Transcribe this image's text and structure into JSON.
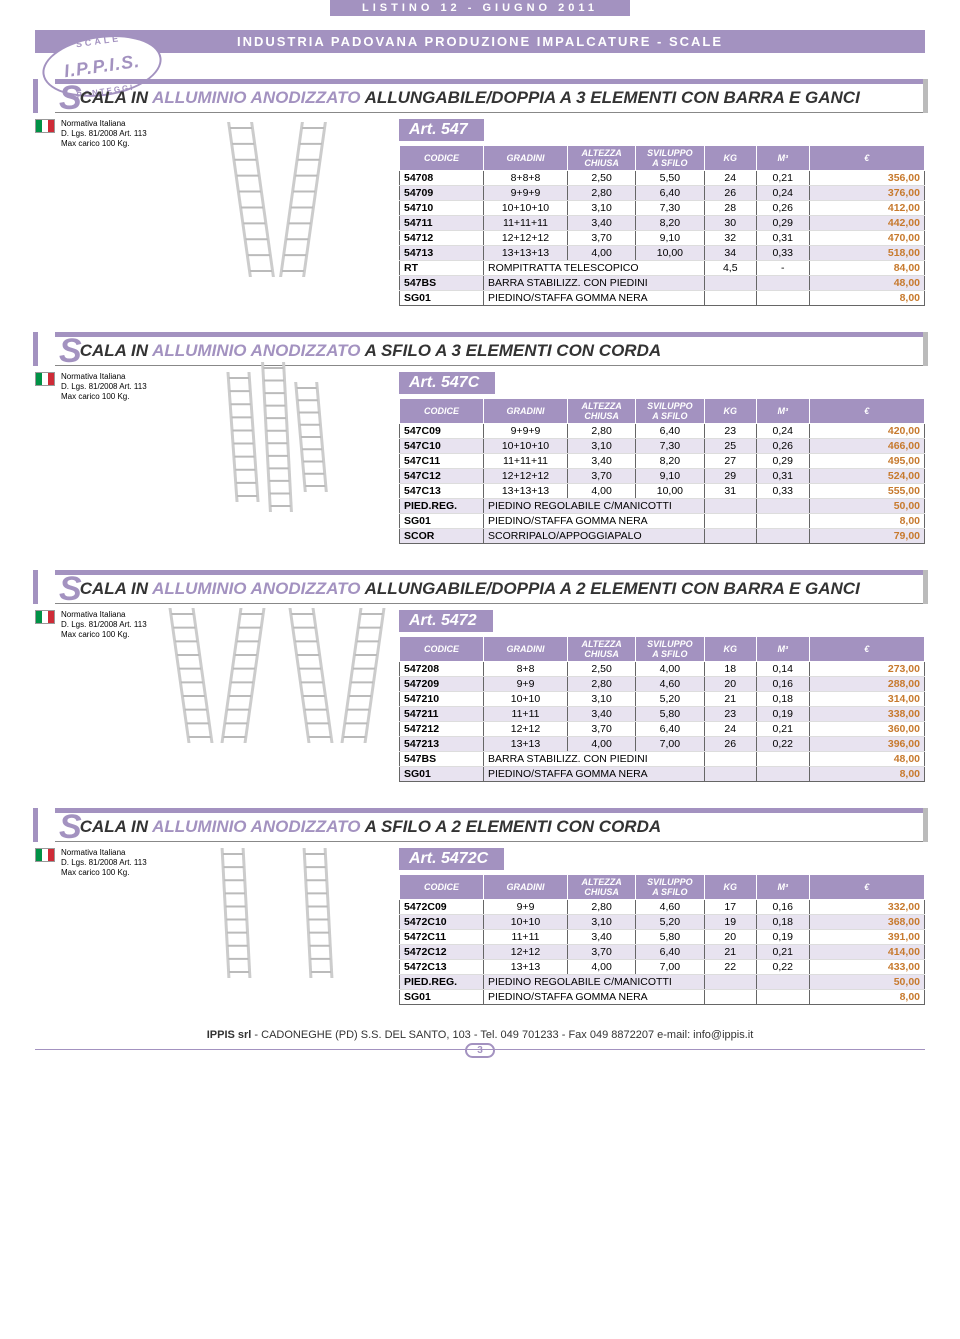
{
  "header": {
    "listino": "LISTINO 12   -   GIUGNO 2011",
    "subtitle": "INDUSTRIA PADOVANA PRODUZIONE IMPALCATURE - SCALE",
    "brand": "I.P.P.I.S.",
    "arc_top": "SCALE",
    "arc_bot": "PONTEGGI"
  },
  "colors": {
    "accent": "#a392c0",
    "price": "#c77a2e",
    "shade": "#e8e3f0"
  },
  "norm": {
    "l1": "Normativa Italiana",
    "l2": "D. Lgs. 81/2008 Art. 113",
    "l3": "Max carico 100 Kg."
  },
  "columns": [
    "CODICE",
    "GRADINI",
    "ALTEZZA CHIUSA",
    "SVILUPPO A SFILO",
    "KG",
    "M³",
    "€"
  ],
  "sections": [
    {
      "title_pre": "CALA IN ",
      "title_hl": "ALLUMINIO ANODIZZATO",
      "title_post": " ALLUNGABILE/DOPPIA A 3 ELEMENTI CON BARRA E GANCI",
      "art": "Art. 547",
      "rows": [
        {
          "c": [
            "54708",
            "8+8+8",
            "2,50",
            "5,50",
            "24",
            "0,21",
            "356,00"
          ],
          "shade": 0
        },
        {
          "c": [
            "54709",
            "9+9+9",
            "2,80",
            "6,40",
            "26",
            "0,24",
            "376,00"
          ],
          "shade": 1
        },
        {
          "c": [
            "54710",
            "10+10+10",
            "3,10",
            "7,30",
            "28",
            "0,26",
            "412,00"
          ],
          "shade": 0
        },
        {
          "c": [
            "54711",
            "11+11+11",
            "3,40",
            "8,20",
            "30",
            "0,29",
            "442,00"
          ],
          "shade": 1
        },
        {
          "c": [
            "54712",
            "12+12+12",
            "3,70",
            "9,10",
            "32",
            "0,31",
            "470,00"
          ],
          "shade": 0
        },
        {
          "c": [
            "54713",
            "13+13+13",
            "4,00",
            "10,00",
            "34",
            "0,33",
            "518,00"
          ],
          "shade": 1
        },
        {
          "span": {
            "code": "RT",
            "desc": "ROMPITRATTA TELESCOPICO",
            "kg": "4,5",
            "m3": "-",
            "price": "84,00"
          },
          "shade": 0
        },
        {
          "span": {
            "code": "547BS",
            "desc": "BARRA STABILIZZ. CON PIEDINI",
            "kg": "",
            "m3": "",
            "price": "48,00"
          },
          "shade": 1
        },
        {
          "span": {
            "code": "SG01",
            "desc": "PIEDINO/STAFFA GOMMA NERA",
            "kg": "",
            "m3": "",
            "price": "8,00"
          },
          "shade": 0
        }
      ]
    },
    {
      "title_pre": "CALA IN ",
      "title_hl": "ALLUMINIO ANODIZZATO",
      "title_post": " A SFILO A 3 ELEMENTI CON CORDA",
      "art": "Art. 547C",
      "rows": [
        {
          "c": [
            "547C09",
            "9+9+9",
            "2,80",
            "6,40",
            "23",
            "0,24",
            "420,00"
          ],
          "shade": 0
        },
        {
          "c": [
            "547C10",
            "10+10+10",
            "3,10",
            "7,30",
            "25",
            "0,26",
            "466,00"
          ],
          "shade": 1
        },
        {
          "c": [
            "547C11",
            "11+11+11",
            "3,40",
            "8,20",
            "27",
            "0,29",
            "495,00"
          ],
          "shade": 0
        },
        {
          "c": [
            "547C12",
            "12+12+12",
            "3,70",
            "9,10",
            "29",
            "0,31",
            "524,00"
          ],
          "shade": 1
        },
        {
          "c": [
            "547C13",
            "13+13+13",
            "4,00",
            "10,00",
            "31",
            "0,33",
            "555,00"
          ],
          "shade": 0
        },
        {
          "span": {
            "code": "PIED.REG.",
            "desc": "PIEDINO REGOLABILE C/MANICOTTI",
            "kg": "",
            "m3": "",
            "price": "50,00"
          },
          "shade": 1
        },
        {
          "span": {
            "code": "SG01",
            "desc": "PIEDINO/STAFFA GOMMA NERA",
            "kg": "",
            "m3": "",
            "price": "8,00"
          },
          "shade": 0
        },
        {
          "span": {
            "code": "SCOR",
            "desc": "SCORRIPALO/APPOGGIAPALO",
            "kg": "",
            "m3": "",
            "price": "79,00"
          },
          "shade": 1
        }
      ]
    },
    {
      "title_pre": "CALA IN ",
      "title_hl": "ALLUMINIO ANODIZZATO",
      "title_post": " ALLUNGABILE/DOPPIA A 2 ELEMENTI CON BARRA E GANCI",
      "art": "Art. 5472",
      "rows": [
        {
          "c": [
            "547208",
            "8+8",
            "2,50",
            "4,00",
            "18",
            "0,14",
            "273,00"
          ],
          "shade": 0
        },
        {
          "c": [
            "547209",
            "9+9",
            "2,80",
            "4,60",
            "20",
            "0,16",
            "288,00"
          ],
          "shade": 1
        },
        {
          "c": [
            "547210",
            "10+10",
            "3,10",
            "5,20",
            "21",
            "0,18",
            "314,00"
          ],
          "shade": 0
        },
        {
          "c": [
            "547211",
            "11+11",
            "3,40",
            "5,80",
            "23",
            "0,19",
            "338,00"
          ],
          "shade": 1
        },
        {
          "c": [
            "547212",
            "12+12",
            "3,70",
            "6,40",
            "24",
            "0,21",
            "360,00"
          ],
          "shade": 0
        },
        {
          "c": [
            "547213",
            "13+13",
            "4,00",
            "7,00",
            "26",
            "0,22",
            "396,00"
          ],
          "shade": 1
        },
        {
          "span": {
            "code": "547BS",
            "desc": "BARRA STABILIZZ. CON PIEDINI",
            "kg": "",
            "m3": "",
            "price": "48,00"
          },
          "shade": 0
        },
        {
          "span": {
            "code": "SG01",
            "desc": "PIEDINO/STAFFA GOMMA NERA",
            "kg": "",
            "m3": "",
            "price": "8,00"
          },
          "shade": 1
        }
      ]
    },
    {
      "title_pre": "CALA IN ",
      "title_hl": "ALLUMINIO ANODIZZATO",
      "title_post": " A SFILO A 2 ELEMENTI CON CORDA",
      "art": "Art. 5472C",
      "rows": [
        {
          "c": [
            "5472C09",
            "9+9",
            "2,80",
            "4,60",
            "17",
            "0,16",
            "332,00"
          ],
          "shade": 0
        },
        {
          "c": [
            "5472C10",
            "10+10",
            "3,10",
            "5,20",
            "19",
            "0,18",
            "368,00"
          ],
          "shade": 1
        },
        {
          "c": [
            "5472C11",
            "11+11",
            "3,40",
            "5,80",
            "20",
            "0,19",
            "391,00"
          ],
          "shade": 0
        },
        {
          "c": [
            "5472C12",
            "12+12",
            "3,70",
            "6,40",
            "21",
            "0,21",
            "414,00"
          ],
          "shade": 1
        },
        {
          "c": [
            "5472C13",
            "13+13",
            "4,00",
            "7,00",
            "22",
            "0,22",
            "433,00"
          ],
          "shade": 0
        },
        {
          "span": {
            "code": "PIED.REG.",
            "desc": "PIEDINO REGOLABILE C/MANICOTTI",
            "kg": "",
            "m3": "",
            "price": "50,00"
          },
          "shade": 1
        },
        {
          "span": {
            "code": "SG01",
            "desc": "PIEDINO/STAFFA GOMMA NERA",
            "kg": "",
            "m3": "",
            "price": "8,00"
          },
          "shade": 0
        }
      ]
    }
  ],
  "footer": {
    "text_a": "IPPIS srl",
    "text_b": " - CADONEGHE (PD) S.S. DEL SANTO, 103 - Tel. 049 701233 - Fax 049 8872207 ",
    "text_c": "e-mail: info@ippis.it",
    "page": "3"
  }
}
